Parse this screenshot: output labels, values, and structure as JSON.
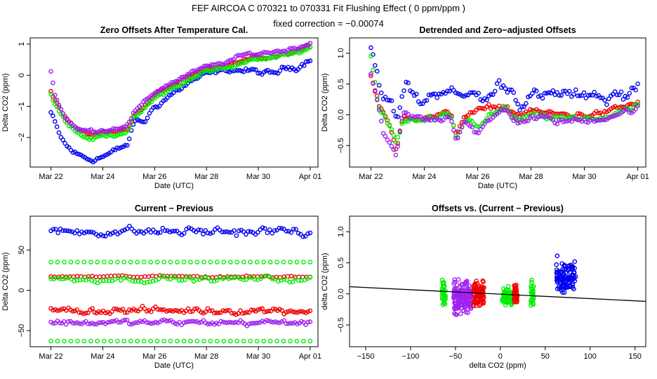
{
  "figure": {
    "title": "FEF   AIRCOA C   070321 to 070331   Fit Flushing Effect ( 0 ppm/ppm )",
    "subtitle": "fixed correction = −0.00074"
  },
  "colors": {
    "blue": "#0000ee",
    "red": "#ee0000",
    "green": "#00ee00",
    "purple": "#a020f0",
    "fit": "#000000"
  },
  "chart_data": [
    {
      "id": "zero",
      "type": "scatter",
      "title": "Zero Offsets After Temperature Cal.",
      "xlabel": "Date (UTC)",
      "ylabel": "Delta CO2 (ppm)",
      "xlim": [
        21.2,
        32.3
      ],
      "ylim": [
        -2.95,
        1.2
      ],
      "xticks": [
        22,
        24,
        26,
        28,
        30,
        32
      ],
      "xtick_labels": [
        "Mar 22",
        "Mar 24",
        "Mar 26",
        "Mar 28",
        "Mar 30",
        "Apr 01"
      ],
      "yticks": [
        -2,
        -1,
        0,
        1
      ],
      "ytick_labels": [
        "−2",
        "−1",
        "0",
        "1"
      ],
      "series": [
        {
          "name": "blue",
          "color": "blue",
          "knots": [
            [
              22.0,
              -1.2
            ],
            [
              22.3,
              -1.9
            ],
            [
              22.6,
              -2.3
            ],
            [
              23.0,
              -2.55
            ],
            [
              23.5,
              -2.7
            ],
            [
              24.0,
              -2.6
            ],
            [
              24.5,
              -2.45
            ],
            [
              25.0,
              -2.2
            ],
            [
              25.2,
              -1.5
            ],
            [
              25.6,
              -1.5
            ],
            [
              26.0,
              -1.0
            ],
            [
              26.5,
              -0.7
            ],
            [
              27.0,
              -0.4
            ],
            [
              27.5,
              -0.15
            ],
            [
              28.0,
              0.0
            ],
            [
              28.5,
              0.1
            ],
            [
              29.0,
              0.2
            ],
            [
              29.5,
              0.15
            ],
            [
              30.0,
              0.1
            ],
            [
              30.5,
              0.0
            ],
            [
              31.0,
              0.2
            ],
            [
              31.5,
              0.3
            ],
            [
              32.0,
              0.55
            ]
          ],
          "noise": 0.12,
          "n": 130
        },
        {
          "name": "red",
          "color": "red",
          "knots": [
            [
              22.0,
              -0.5
            ],
            [
              22.3,
              -1.0
            ],
            [
              22.7,
              -1.5
            ],
            [
              23.2,
              -1.85
            ],
            [
              23.6,
              -1.9
            ],
            [
              24.0,
              -1.85
            ],
            [
              24.5,
              -1.8
            ],
            [
              25.0,
              -1.65
            ],
            [
              25.2,
              -1.3
            ],
            [
              25.6,
              -1.0
            ],
            [
              26.0,
              -0.65
            ],
            [
              26.5,
              -0.4
            ],
            [
              27.0,
              -0.2
            ],
            [
              27.5,
              0.0
            ],
            [
              28.0,
              0.2
            ],
            [
              28.5,
              0.25
            ],
            [
              29.0,
              0.35
            ],
            [
              29.5,
              0.5
            ],
            [
              30.0,
              0.55
            ],
            [
              30.5,
              0.6
            ],
            [
              31.0,
              0.7
            ],
            [
              31.5,
              0.8
            ],
            [
              32.0,
              0.95
            ]
          ],
          "noise": 0.06,
          "n": 130
        },
        {
          "name": "green",
          "color": "green",
          "knots": [
            [
              22.0,
              -0.6
            ],
            [
              22.3,
              -1.1
            ],
            [
              22.7,
              -1.6
            ],
            [
              23.2,
              -1.95
            ],
            [
              23.6,
              -2.05
            ],
            [
              24.0,
              -1.95
            ],
            [
              24.5,
              -1.9
            ],
            [
              25.0,
              -1.75
            ],
            [
              25.2,
              -1.4
            ],
            [
              25.6,
              -1.1
            ],
            [
              26.0,
              -0.75
            ],
            [
              26.5,
              -0.5
            ],
            [
              27.0,
              -0.3
            ],
            [
              27.5,
              -0.1
            ],
            [
              28.0,
              0.15
            ],
            [
              28.5,
              0.2
            ],
            [
              29.0,
              0.3
            ],
            [
              29.5,
              0.45
            ],
            [
              30.0,
              0.5
            ],
            [
              30.5,
              0.55
            ],
            [
              31.0,
              0.65
            ],
            [
              31.5,
              0.75
            ],
            [
              32.0,
              0.9
            ]
          ],
          "noise": 0.07,
          "n": 130
        },
        {
          "name": "purple",
          "color": "purple",
          "knots": [
            [
              22.0,
              0.15
            ],
            [
              22.15,
              -0.6
            ],
            [
              22.5,
              -1.3
            ],
            [
              23.0,
              -1.75
            ],
            [
              23.5,
              -1.8
            ],
            [
              24.0,
              -1.75
            ],
            [
              24.5,
              -1.7
            ],
            [
              25.0,
              -1.55
            ],
            [
              25.2,
              -1.2
            ],
            [
              25.6,
              -0.9
            ],
            [
              26.0,
              -0.55
            ],
            [
              26.5,
              -0.3
            ],
            [
              27.0,
              -0.1
            ],
            [
              27.5,
              0.1
            ],
            [
              28.0,
              0.25
            ],
            [
              28.5,
              0.35
            ],
            [
              29.0,
              0.5
            ],
            [
              29.5,
              0.65
            ],
            [
              30.0,
              0.7
            ],
            [
              30.5,
              0.75
            ],
            [
              31.0,
              0.8
            ],
            [
              31.5,
              0.9
            ],
            [
              32.0,
              1.05
            ]
          ],
          "noise": 0.07,
          "n": 130
        }
      ]
    },
    {
      "id": "detrended",
      "type": "scatter",
      "title": "Detrended and Zero−adjusted Offsets",
      "xlabel": "Date (UTC)",
      "ylabel": "Delta CO2 (ppm)",
      "xlim": [
        21.2,
        32.3
      ],
      "ylim": [
        -0.85,
        1.25
      ],
      "xticks": [
        22,
        24,
        26,
        28,
        30,
        32
      ],
      "xtick_labels": [
        "Mar 22",
        "Mar 24",
        "Mar 26",
        "Mar 28",
        "Mar 30",
        "Apr 01"
      ],
      "yticks": [
        -0.5,
        0.0,
        0.5,
        1.0
      ],
      "ytick_labels": [
        "−0.5",
        "0.0",
        "0.5",
        "1.0"
      ],
      "series": [
        {
          "name": "blue",
          "color": "blue",
          "knots": [
            [
              22.0,
              1.1
            ],
            [
              22.4,
              0.4
            ],
            [
              22.8,
              0.1
            ],
            [
              23.0,
              -0.1
            ],
            [
              23.3,
              0.5
            ],
            [
              23.8,
              0.2
            ],
            [
              24.2,
              0.3
            ],
            [
              24.6,
              0.4
            ],
            [
              25.0,
              0.5
            ],
            [
              25.3,
              0.2
            ],
            [
              25.7,
              0.35
            ],
            [
              26.0,
              0.3
            ],
            [
              26.4,
              0.25
            ],
            [
              26.8,
              0.5
            ],
            [
              27.2,
              0.45
            ],
            [
              27.6,
              0.2
            ],
            [
              28.0,
              0.35
            ],
            [
              28.4,
              0.25
            ],
            [
              28.8,
              0.3
            ],
            [
              29.2,
              0.35
            ],
            [
              29.6,
              0.3
            ],
            [
              30.0,
              0.25
            ],
            [
              30.4,
              0.4
            ],
            [
              30.8,
              0.25
            ],
            [
              31.2,
              0.35
            ],
            [
              31.6,
              0.3
            ],
            [
              32.0,
              0.55
            ]
          ],
          "noise": 0.12,
          "n": 130
        },
        {
          "name": "red",
          "color": "red",
          "knots": [
            [
              22.0,
              0.65
            ],
            [
              22.3,
              0.15
            ],
            [
              22.7,
              -0.2
            ],
            [
              22.95,
              -0.6
            ],
            [
              23.2,
              0.0
            ],
            [
              24.0,
              -0.05
            ],
            [
              25.0,
              0.0
            ],
            [
              25.2,
              -0.3
            ],
            [
              25.5,
              0.0
            ],
            [
              26.0,
              0.05
            ],
            [
              27.0,
              0.15
            ],
            [
              27.5,
              0.0
            ],
            [
              28.0,
              0.05
            ],
            [
              29.0,
              0.0
            ],
            [
              30.0,
              0.0
            ],
            [
              31.0,
              0.05
            ],
            [
              32.0,
              0.2
            ]
          ],
          "noise": 0.06,
          "n": 130
        },
        {
          "name": "green",
          "color": "green",
          "knots": [
            [
              22.0,
              0.95
            ],
            [
              22.3,
              0.1
            ],
            [
              22.7,
              -0.2
            ],
            [
              22.95,
              -0.5
            ],
            [
              23.2,
              -0.1
            ],
            [
              24.0,
              -0.1
            ],
            [
              25.0,
              -0.05
            ],
            [
              25.2,
              -0.45
            ],
            [
              25.5,
              -0.1
            ],
            [
              26.0,
              -0.15
            ],
            [
              27.0,
              0.1
            ],
            [
              27.5,
              -0.1
            ],
            [
              28.0,
              -0.05
            ],
            [
              29.0,
              -0.05
            ],
            [
              30.0,
              -0.1
            ],
            [
              31.0,
              0.0
            ],
            [
              32.0,
              0.1
            ]
          ],
          "noise": 0.07,
          "n": 130
        },
        {
          "name": "purple",
          "color": "purple",
          "knots": [
            [
              22.0,
              0.7
            ],
            [
              22.2,
              0.3
            ],
            [
              22.5,
              -0.35
            ],
            [
              22.95,
              -0.7
            ],
            [
              23.2,
              0.0
            ],
            [
              24.0,
              -0.1
            ],
            [
              25.0,
              0.0
            ],
            [
              25.2,
              -0.4
            ],
            [
              25.5,
              -0.05
            ],
            [
              26.0,
              -0.3
            ],
            [
              27.0,
              0.1
            ],
            [
              27.5,
              -0.1
            ],
            [
              28.0,
              -0.05
            ],
            [
              29.0,
              -0.1
            ],
            [
              30.0,
              -0.1
            ],
            [
              31.0,
              0.0
            ],
            [
              32.0,
              0.1
            ]
          ],
          "noise": 0.07,
          "n": 130
        }
      ]
    },
    {
      "id": "curprev",
      "type": "scatter",
      "title": "Current − Previous",
      "xlabel": "Date (UTC)",
      "ylabel": "Delta CO2 (ppm)",
      "xlim": [
        21.2,
        32.3
      ],
      "ylim": [
        -70,
        92
      ],
      "xticks": [
        22,
        24,
        26,
        28,
        30,
        32
      ],
      "xtick_labels": [
        "Mar 22",
        "Mar 24",
        "Mar 26",
        "Mar 28",
        "Mar 30",
        "Apr 01"
      ],
      "yticks": [
        -50,
        0,
        50
      ],
      "ytick_labels": [
        "−50",
        "0",
        "50"
      ],
      "bands": [
        {
          "color": "blue",
          "center": 73,
          "spread": 8,
          "n": 110
        },
        {
          "color": "green",
          "center": 35,
          "spread": 0,
          "n": 40
        },
        {
          "color": "red",
          "center": 17,
          "spread": 2,
          "n": 70
        },
        {
          "color": "green",
          "center": 14,
          "spread": 5,
          "n": 90
        },
        {
          "color": "red",
          "center": -25,
          "spread": 6,
          "n": 120
        },
        {
          "color": "purple",
          "center": -40,
          "spread": 5,
          "n": 120
        },
        {
          "color": "green",
          "center": -63,
          "spread": 0,
          "n": 40
        }
      ]
    },
    {
      "id": "offsets",
      "type": "scatter",
      "title": "Offsets vs. (Current − Previous)",
      "xlabel": "delta CO2 (ppm)",
      "ylabel": "delta CO2 (ppm)",
      "xlim": [
        -168,
        162
      ],
      "ylim": [
        -0.85,
        1.25
      ],
      "xticks": [
        -150,
        -100,
        -50,
        0,
        50,
        100,
        150
      ],
      "xtick_labels": [
        "−150",
        "−100",
        "−50",
        "0",
        "50",
        "100",
        "150"
      ],
      "yticks": [
        -0.5,
        0.0,
        0.5,
        1.0
      ],
      "ytick_labels": [
        "−0.5",
        "0.0",
        "0.5",
        "1.0"
      ],
      "clusters": [
        {
          "color": "green",
          "xmin": -65,
          "xmax": -61,
          "yc": 0.0,
          "ys": 0.18,
          "n": 35
        },
        {
          "color": "purple",
          "xmin": -52,
          "xmax": -32,
          "yc": -0.05,
          "ys": 0.22,
          "n": 150
        },
        {
          "color": "red",
          "xmin": -30,
          "xmax": -18,
          "yc": 0.0,
          "ys": 0.15,
          "n": 90
        },
        {
          "color": "green",
          "xmin": 2,
          "xmax": 14,
          "yc": -0.05,
          "ys": 0.12,
          "n": 60
        },
        {
          "color": "red",
          "xmin": 15,
          "xmax": 19,
          "yc": 0.0,
          "ys": 0.12,
          "n": 40
        },
        {
          "color": "green",
          "xmin": 34,
          "xmax": 37,
          "yc": 0.0,
          "ys": 0.18,
          "n": 30
        },
        {
          "color": "blue",
          "xmin": 62,
          "xmax": 84,
          "yc": 0.3,
          "ys": 0.2,
          "n": 110
        }
      ],
      "fit_line": {
        "x": [
          -168,
          162
        ],
        "y": [
          0.115,
          -0.12
        ]
      }
    }
  ]
}
